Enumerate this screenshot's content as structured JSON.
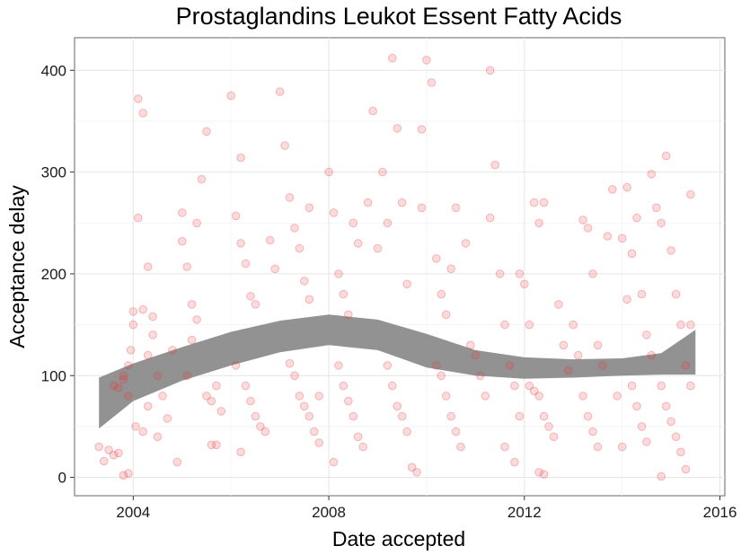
{
  "chart_data": {
    "type": "scatter",
    "title": "Prostaglandins Leukot Essent Fatty Acids",
    "xlabel": "Date accepted",
    "ylabel": "Acceptance delay",
    "xlim": [
      2002.8,
      2016.1
    ],
    "ylim": [
      -18,
      432
    ],
    "x_ticks": [
      2004,
      2008,
      2012,
      2016
    ],
    "y_ticks": [
      0,
      100,
      200,
      300,
      400
    ],
    "grid": true,
    "point_color": "#e8383d",
    "band_color": "#8c8c8c",
    "smooth_band": {
      "x": [
        2003.3,
        2004.0,
        2005.0,
        2006.0,
        2007.0,
        2008.0,
        2009.0,
        2010.0,
        2011.0,
        2012.0,
        2013.0,
        2014.0,
        2014.8,
        2015.5
      ],
      "lower": [
        48,
        75,
        95,
        110,
        123,
        130,
        125,
        108,
        100,
        97,
        98,
        100,
        101,
        101
      ],
      "upper": [
        98,
        112,
        128,
        143,
        154,
        160,
        155,
        141,
        125,
        118,
        116,
        117,
        122,
        145
      ]
    },
    "points": [
      [
        2003.3,
        30
      ],
      [
        2003.4,
        16
      ],
      [
        2003.5,
        27
      ],
      [
        2003.6,
        22
      ],
      [
        2003.7,
        24
      ],
      [
        2003.8,
        2
      ],
      [
        2003.9,
        4
      ],
      [
        2003.6,
        90
      ],
      [
        2003.7,
        88
      ],
      [
        2003.8,
        100
      ],
      [
        2003.9,
        80
      ],
      [
        2003.95,
        125
      ],
      [
        2004.0,
        150
      ],
      [
        2004.0,
        163
      ],
      [
        2004.05,
        50
      ],
      [
        2003.9,
        110
      ],
      [
        2003.8,
        96
      ],
      [
        2004.1,
        255
      ],
      [
        2004.1,
        372
      ],
      [
        2004.2,
        358
      ],
      [
        2004.3,
        207
      ],
      [
        2004.2,
        165
      ],
      [
        2004.4,
        158
      ],
      [
        2004.3,
        70
      ],
      [
        2004.3,
        120
      ],
      [
        2004.4,
        140
      ],
      [
        2004.5,
        100
      ],
      [
        2004.6,
        80
      ],
      [
        2004.7,
        58
      ],
      [
        2004.2,
        45
      ],
      [
        2004.5,
        40
      ],
      [
        2004.8,
        125
      ],
      [
        2004.9,
        15
      ],
      [
        2005.0,
        260
      ],
      [
        2005.1,
        207
      ],
      [
        2005.0,
        232
      ],
      [
        2005.3,
        250
      ],
      [
        2005.4,
        293
      ],
      [
        2005.5,
        340
      ],
      [
        2005.2,
        170
      ],
      [
        2005.3,
        155
      ],
      [
        2005.5,
        80
      ],
      [
        2005.6,
        75
      ],
      [
        2005.7,
        90
      ],
      [
        2005.8,
        65
      ],
      [
        2005.6,
        32
      ],
      [
        2005.7,
        32
      ],
      [
        2005.1,
        100
      ],
      [
        2005.2,
        135
      ],
      [
        2006.0,
        375
      ],
      [
        2006.1,
        257
      ],
      [
        2006.2,
        314
      ],
      [
        2006.2,
        230
      ],
      [
        2006.3,
        210
      ],
      [
        2006.4,
        178
      ],
      [
        2006.5,
        170
      ],
      [
        2006.1,
        110
      ],
      [
        2006.3,
        90
      ],
      [
        2006.4,
        75
      ],
      [
        2006.5,
        60
      ],
      [
        2006.6,
        50
      ],
      [
        2006.7,
        45
      ],
      [
        2006.2,
        25
      ],
      [
        2006.8,
        233
      ],
      [
        2006.9,
        205
      ],
      [
        2007.0,
        379
      ],
      [
        2007.1,
        326
      ],
      [
        2007.2,
        275
      ],
      [
        2007.3,
        245
      ],
      [
        2007.4,
        225
      ],
      [
        2007.5,
        193
      ],
      [
        2007.6,
        175
      ],
      [
        2007.2,
        112
      ],
      [
        2007.3,
        100
      ],
      [
        2007.4,
        80
      ],
      [
        2007.5,
        70
      ],
      [
        2007.6,
        60
      ],
      [
        2007.7,
        45
      ],
      [
        2007.8,
        34
      ],
      [
        2007.6,
        265
      ],
      [
        2007.8,
        80
      ],
      [
        2008.0,
        300
      ],
      [
        2008.1,
        260
      ],
      [
        2008.2,
        200
      ],
      [
        2008.3,
        180
      ],
      [
        2008.4,
        160
      ],
      [
        2008.5,
        250
      ],
      [
        2008.6,
        230
      ],
      [
        2008.2,
        110
      ],
      [
        2008.3,
        90
      ],
      [
        2008.4,
        75
      ],
      [
        2008.5,
        60
      ],
      [
        2008.6,
        40
      ],
      [
        2008.7,
        30
      ],
      [
        2008.1,
        15
      ],
      [
        2008.8,
        270
      ],
      [
        2008.9,
        360
      ],
      [
        2009.0,
        225
      ],
      [
        2009.1,
        300
      ],
      [
        2009.2,
        250
      ],
      [
        2009.3,
        412
      ],
      [
        2009.4,
        343
      ],
      [
        2009.5,
        270
      ],
      [
        2009.6,
        190
      ],
      [
        2009.2,
        110
      ],
      [
        2009.3,
        90
      ],
      [
        2009.4,
        70
      ],
      [
        2009.5,
        60
      ],
      [
        2009.6,
        45
      ],
      [
        2009.7,
        10
      ],
      [
        2009.8,
        5
      ],
      [
        2009.9,
        342
      ],
      [
        2009.9,
        265
      ],
      [
        2010.0,
        410
      ],
      [
        2010.1,
        388
      ],
      [
        2010.2,
        215
      ],
      [
        2010.3,
        180
      ],
      [
        2010.4,
        160
      ],
      [
        2010.5,
        205
      ],
      [
        2010.6,
        265
      ],
      [
        2010.2,
        110
      ],
      [
        2010.3,
        100
      ],
      [
        2010.4,
        80
      ],
      [
        2010.5,
        60
      ],
      [
        2010.6,
        45
      ],
      [
        2010.7,
        30
      ],
      [
        2010.8,
        230
      ],
      [
        2010.9,
        130
      ],
      [
        2011.0,
        120
      ],
      [
        2011.1,
        100
      ],
      [
        2011.2,
        80
      ],
      [
        2011.3,
        255
      ],
      [
        2011.3,
        400
      ],
      [
        2011.4,
        307
      ],
      [
        2011.5,
        200
      ],
      [
        2011.6,
        150
      ],
      [
        2011.7,
        110
      ],
      [
        2011.8,
        90
      ],
      [
        2011.9,
        60
      ],
      [
        2011.6,
        30
      ],
      [
        2011.8,
        15
      ],
      [
        2011.9,
        200
      ],
      [
        2012.0,
        190
      ],
      [
        2012.1,
        150
      ],
      [
        2012.2,
        270
      ],
      [
        2012.3,
        250
      ],
      [
        2012.4,
        270
      ],
      [
        2012.1,
        90
      ],
      [
        2012.2,
        85
      ],
      [
        2012.3,
        80
      ],
      [
        2012.4,
        60
      ],
      [
        2012.5,
        50
      ],
      [
        2012.6,
        40
      ],
      [
        2012.3,
        5
      ],
      [
        2012.4,
        3
      ],
      [
        2012.7,
        170
      ],
      [
        2012.8,
        130
      ],
      [
        2012.9,
        105
      ],
      [
        2013.0,
        150
      ],
      [
        2013.1,
        120
      ],
      [
        2013.2,
        253
      ],
      [
        2013.3,
        245
      ],
      [
        2013.4,
        200
      ],
      [
        2013.5,
        130
      ],
      [
        2013.6,
        110
      ],
      [
        2013.2,
        80
      ],
      [
        2013.3,
        60
      ],
      [
        2013.4,
        45
      ],
      [
        2013.5,
        30
      ],
      [
        2013.7,
        237
      ],
      [
        2013.8,
        283
      ],
      [
        2013.9,
        80
      ],
      [
        2014.0,
        235
      ],
      [
        2014.1,
        175
      ],
      [
        2014.2,
        220
      ],
      [
        2014.3,
        255
      ],
      [
        2014.4,
        180
      ],
      [
        2014.5,
        140
      ],
      [
        2014.6,
        120
      ],
      [
        2014.2,
        90
      ],
      [
        2014.3,
        70
      ],
      [
        2014.4,
        50
      ],
      [
        2014.5,
        35
      ],
      [
        2014.6,
        298
      ],
      [
        2014.1,
        285
      ],
      [
        2014.0,
        30
      ],
      [
        2014.7,
        265
      ],
      [
        2014.8,
        250
      ],
      [
        2014.9,
        316
      ],
      [
        2015.0,
        223
      ],
      [
        2015.1,
        180
      ],
      [
        2015.2,
        150
      ],
      [
        2015.3,
        110
      ],
      [
        2014.8,
        90
      ],
      [
        2014.9,
        70
      ],
      [
        2015.0,
        55
      ],
      [
        2015.1,
        40
      ],
      [
        2015.2,
        25
      ],
      [
        2015.3,
        8
      ],
      [
        2015.4,
        278
      ],
      [
        2015.4,
        90
      ],
      [
        2015.4,
        150
      ],
      [
        2014.8,
        1
      ]
    ]
  }
}
